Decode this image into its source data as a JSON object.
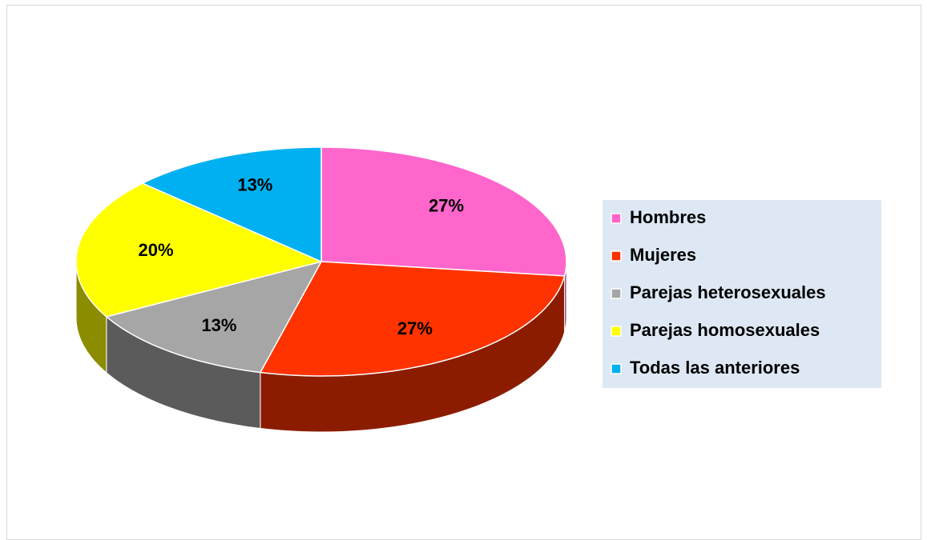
{
  "chart_data": {
    "type": "pie",
    "categories": [
      "Hombres",
      "Mujeres",
      "Parejas heterosexuales",
      "Parejas homosexuales",
      "Todas las anteriores"
    ],
    "values": [
      27,
      27,
      13,
      20,
      13
    ],
    "value_labels": [
      "27%",
      "27%",
      "13%",
      "20%",
      "13%"
    ],
    "colors": [
      "#ff66cc",
      "#ff3300",
      "#a6a6a6",
      "#ffff00",
      "#00b0f0"
    ],
    "legend": "right"
  }
}
